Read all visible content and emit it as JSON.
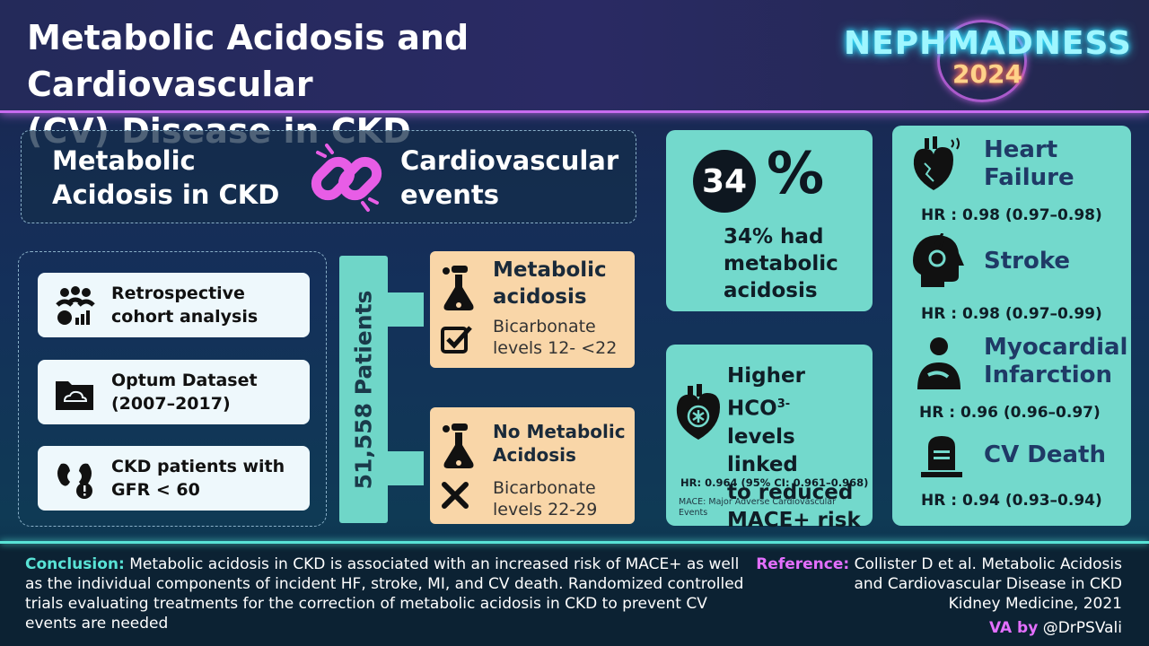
{
  "header": {
    "title_line1": "Metabolic Acidosis and Cardiovascular",
    "title_line2": "(CV) Disease in CKD",
    "logo_line1": "NEPHMADNESS",
    "logo_line2": "2024"
  },
  "link_box": {
    "left_line1": "Metabolic",
    "left_line2": "Acidosis in CKD",
    "right_line1": "Cardiovascular",
    "right_line2": "events"
  },
  "study": {
    "items": [
      {
        "line1": "Retrospective",
        "line2": "cohort analysis",
        "icon": "people-chart-icon"
      },
      {
        "line1": "Optum Dataset",
        "line2": "(2007–2017)",
        "icon": "cloud-folder-icon"
      },
      {
        "line1": "CKD patients with",
        "line2": "GFR < 60",
        "icon": "kidney-warning-icon"
      }
    ],
    "patients": "51,558 Patients"
  },
  "groups": {
    "acidosis": {
      "title1": "Metabolic",
      "title2": "acidosis",
      "sub1": "Bicarbonate",
      "sub2": "levels 12- <22"
    },
    "no_acidosis": {
      "title1": "No Metabolic",
      "title2": "Acidosis",
      "sub1": "Bicarbonate",
      "sub2": "levels 22-29"
    }
  },
  "prevalence": {
    "number": "34",
    "symbol": "%",
    "line1": "34% had",
    "line2": "metabolic",
    "line3": "acidosis"
  },
  "hco3": {
    "line1": "Higher HCO",
    "sup": "3-",
    "line2": "levels linked",
    "line3": "to reduced",
    "line4": "MACE+ risk",
    "hr": "HR: 0.964 (95% CI: 0.961–0.968)",
    "note1": "MACE: Major Adverse Cardiovascular",
    "note2": "Events"
  },
  "outcomes": [
    {
      "line1": "Heart",
      "line2": "Failure",
      "hr": "HR : 0.98 (0.97–0.98)"
    },
    {
      "line1": "Stroke",
      "line2": "",
      "hr": "HR : 0.98 (0.97–0.99)"
    },
    {
      "line1": "Myocardial",
      "line2": "Infarction",
      "hr": "HR : 0.96 (0.96–0.97)"
    },
    {
      "line1": "CV Death",
      "line2": "",
      "hr": "HR : 0.94 (0.93–0.94)"
    }
  ],
  "footer": {
    "conclusion_label": "Conclusion:",
    "conclusion_text": " Metabolic acidosis in CKD is associated with an increased risk of MACE+ as well as the individual components of incident HF, stroke, MI, and CV death. Randomized controlled trials evaluating treatments for the correction of metabolic acidosis in CKD to prevent CV events are needed",
    "reference_label": "Reference:",
    "reference_line1": " Collister D et al. Metabolic Acidosis",
    "reference_line2": "and Cardiovascular Disease in CKD",
    "reference_line3": "Kidney Medicine, 2021",
    "va_label": "VA by",
    "va_handle": " @DrPSVali"
  },
  "colors": {
    "teal": "#73d9cc",
    "orange": "#f9d6a8",
    "magenta": "#e36fff",
    "navy": "#1b2550"
  }
}
